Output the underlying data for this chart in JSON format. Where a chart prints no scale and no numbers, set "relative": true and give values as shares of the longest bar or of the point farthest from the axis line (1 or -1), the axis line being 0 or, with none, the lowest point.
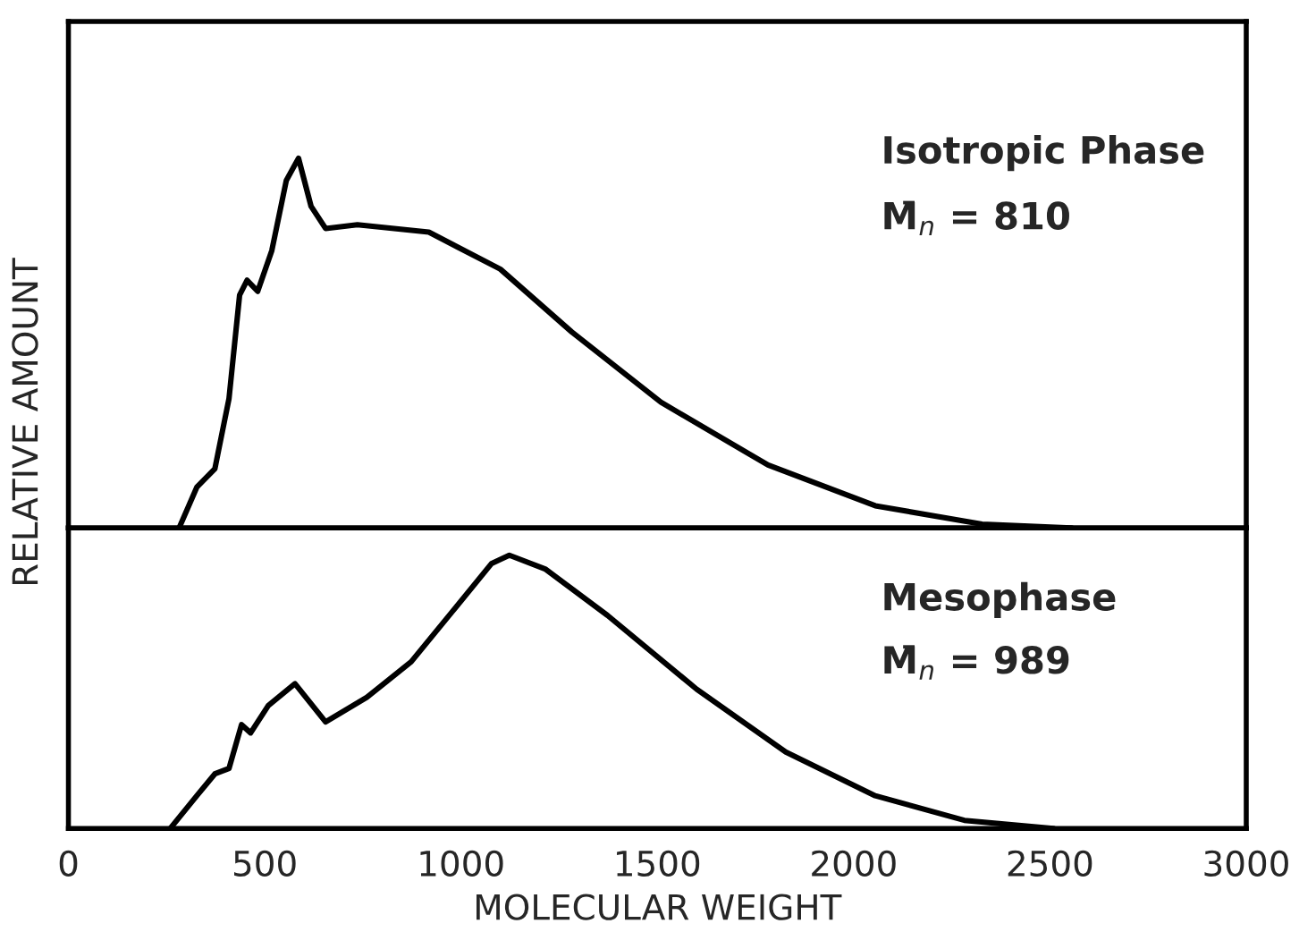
{
  "chart_data": [
    {
      "type": "line",
      "relative": true,
      "xlim": [
        0,
        3000
      ],
      "tick_labels": false,
      "grid": false,
      "legend": false,
      "annotations": [
        "Isotropic Phase",
        "M̄$_{n}$ = 810"
      ],
      "series": [
        {
          "color": "#000000",
          "x": [
            282,
            327,
            373,
            409,
            436,
            455,
            482,
            518,
            555,
            586,
            618,
            655,
            736,
            918,
            1100,
            1282,
            1509,
            1782,
            2055,
            2327,
            2555
          ],
          "values": [
            0,
            0.11,
            0.16,
            0.35,
            0.63,
            0.67,
            0.64,
            0.75,
            0.94,
            1.0,
            0.87,
            0.81,
            0.82,
            0.8,
            0.7,
            0.53,
            0.34,
            0.17,
            0.06,
            0.01,
            0
          ]
        }
      ]
    },
    {
      "type": "line",
      "relative": true,
      "xlim": [
        0,
        3000
      ],
      "xticks": [
        0,
        500,
        1000,
        1500,
        2000,
        2500,
        3000
      ],
      "tick_labels": "x",
      "xlabel": "MOLECULAR WEIGHT",
      "ylabel": "RELATIVE AMOUNT",
      "grid": false,
      "legend": false,
      "annotations": [
        "Mesophase",
        "M̄$_{n}$ = 989"
      ],
      "series": [
        {
          "color": "#000000",
          "x": [
            259,
            327,
            373,
            409,
            441,
            464,
            509,
            577,
            655,
            760,
            873,
            987,
            1078,
            1123,
            1214,
            1373,
            1600,
            1827,
            2055,
            2282,
            2509
          ],
          "values": [
            0,
            0.12,
            0.2,
            0.22,
            0.38,
            0.35,
            0.45,
            0.53,
            0.39,
            0.48,
            0.61,
            0.81,
            0.97,
            1.0,
            0.95,
            0.78,
            0.51,
            0.28,
            0.12,
            0.03,
            0
          ]
        }
      ]
    }
  ]
}
